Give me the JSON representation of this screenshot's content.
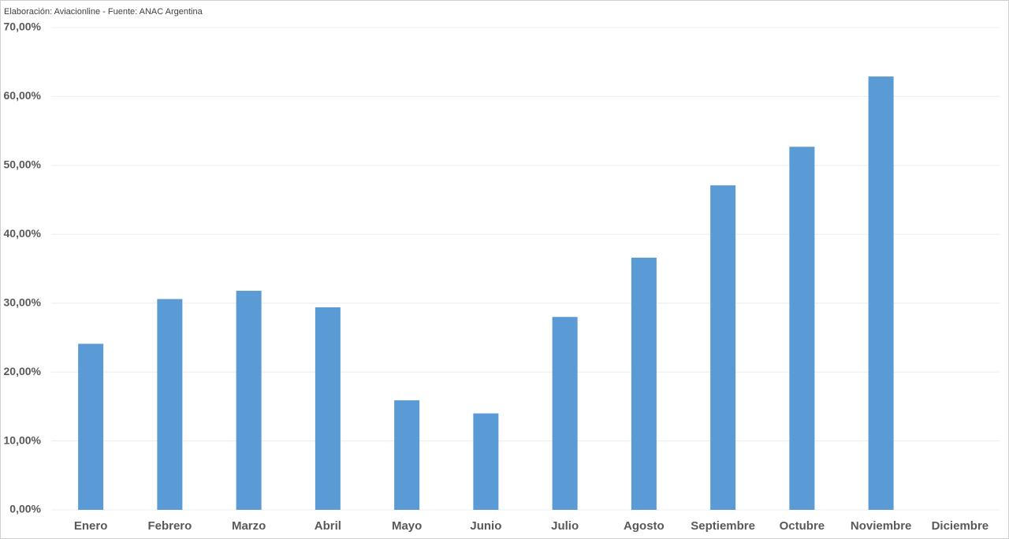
{
  "chart_data": {
    "type": "bar",
    "source": "Elaboración: Aviacionline - Fuente: ANAC Argentina",
    "categories": [
      "Enero",
      "Febrero",
      "Marzo",
      "Abril",
      "Mayo",
      "Junio",
      "Julio",
      "Agosto",
      "Septiembre",
      "Octubre",
      "Noviembre",
      "Diciembre"
    ],
    "values": [
      24.1,
      30.6,
      31.8,
      29.4,
      15.9,
      14.0,
      28.0,
      36.6,
      47.1,
      52.7,
      62.9,
      null
    ],
    "color": "#5b9bd5",
    "ylim": [
      0,
      70
    ],
    "yticks": [
      {
        "value": 0,
        "label": "0,00%"
      },
      {
        "value": 10,
        "label": "10,00%"
      },
      {
        "value": 20,
        "label": "20,00%"
      },
      {
        "value": 30,
        "label": "30,00%"
      },
      {
        "value": 40,
        "label": "40,00%"
      },
      {
        "value": 50,
        "label": "50,00%"
      },
      {
        "value": 60,
        "label": "60,00%"
      },
      {
        "value": 70,
        "label": "70,00%"
      }
    ],
    "grid": true
  }
}
